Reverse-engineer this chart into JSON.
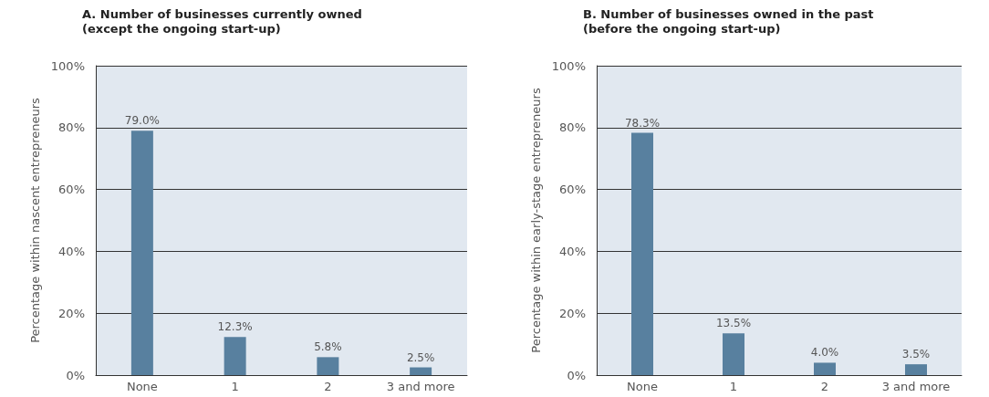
{
  "chart_data": [
    {
      "type": "bar",
      "title": "A. Number of businesses currently owned\n(except the ongoing start-up)",
      "ylabel": "Percentage within nascent entrepreneurs",
      "categories": [
        "None",
        "1",
        "2",
        "3 and more"
      ],
      "values": [
        79.0,
        12.3,
        5.8,
        2.5
      ],
      "value_labels": [
        "79.0%",
        "12.3%",
        "5.8%",
        "2.5%"
      ],
      "color": "#58809f",
      "ylim": [
        0,
        100
      ],
      "yticks": [
        {
          "value": 0,
          "label": "0%"
        },
        {
          "value": 20,
          "label": "20%"
        },
        {
          "value": 40,
          "label": "40%"
        },
        {
          "value": 60,
          "label": "60%"
        },
        {
          "value": 80,
          "label": "80%"
        },
        {
          "value": 100,
          "label": "100%"
        }
      ],
      "grid": "y"
    },
    {
      "type": "bar",
      "title": "B. Number of businesses owned in the past\n(before the ongoing start-up)",
      "ylabel": "Percentage within early-stage entrepreneurs",
      "categories": [
        "None",
        "1",
        "2",
        "3 and more"
      ],
      "values": [
        78.3,
        13.5,
        4.0,
        3.5
      ],
      "value_labels": [
        "78.3%",
        "13.5%",
        "4.0%",
        "3.5%"
      ],
      "color": "#58809f",
      "ylim": [
        0,
        100
      ],
      "yticks": [
        {
          "value": 0,
          "label": "0%"
        },
        {
          "value": 20,
          "label": "20%"
        },
        {
          "value": 40,
          "label": "40%"
        },
        {
          "value": 60,
          "label": "60%"
        },
        {
          "value": 80,
          "label": "80%"
        },
        {
          "value": 100,
          "label": "100%"
        }
      ],
      "grid": "y"
    }
  ]
}
